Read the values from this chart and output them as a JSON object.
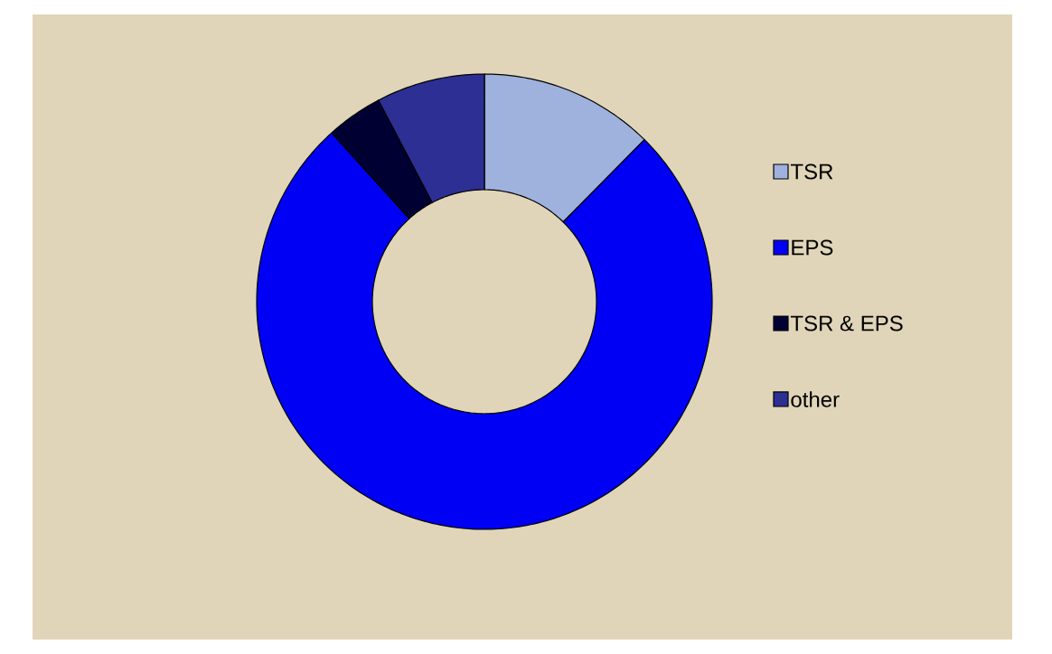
{
  "chart_data": {
    "type": "donut",
    "categories": [
      "TSR",
      "EPS",
      "TSR & EPS",
      "other"
    ],
    "values": [
      12.4,
      75.9,
      4.0,
      7.7
    ],
    "colors": [
      "#9fb1dd",
      "#0000f5",
      "#000033",
      "#2d2f94"
    ],
    "legend": "right"
  }
}
